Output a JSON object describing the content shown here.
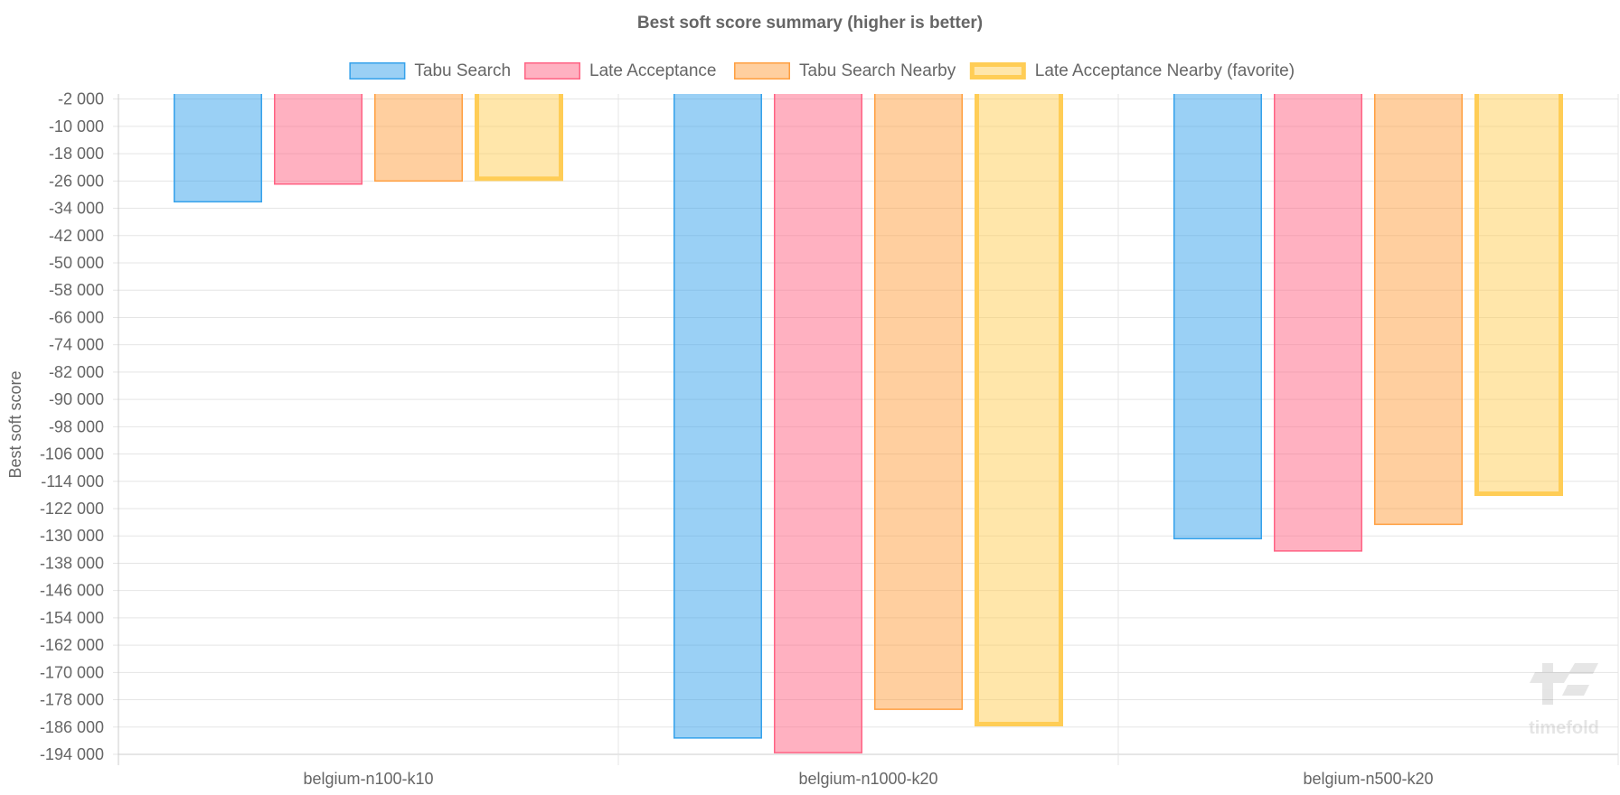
{
  "chart_data": {
    "type": "bar",
    "title": "Best soft score summary (higher is better)",
    "xlabel": "",
    "ylabel": "Best soft score",
    "categories": [
      "belgium-n100-k10",
      "belgium-n1000-k20",
      "belgium-n500-k20"
    ],
    "ylim": [
      -194000,
      -500
    ],
    "yticks": [
      -2000,
      -10000,
      -18000,
      -26000,
      -34000,
      -42000,
      -50000,
      -58000,
      -66000,
      -74000,
      -82000,
      -90000,
      -98000,
      -106000,
      -114000,
      -122000,
      -130000,
      -138000,
      -146000,
      -154000,
      -162000,
      -170000,
      -178000,
      -186000,
      -194000
    ],
    "grid": true,
    "legend_position": "top",
    "series": [
      {
        "name": "Tabu Search",
        "values": [
          -32300,
          -189400,
          -131000
        ],
        "color": "#36a2eb",
        "fill": "rgba(54,162,235,0.5)",
        "favorite": false
      },
      {
        "name": "Late Acceptance",
        "values": [
          -27100,
          -193700,
          -134600
        ],
        "color": "#ff6384",
        "fill": "rgba(255,99,132,0.5)",
        "favorite": false
      },
      {
        "name": "Tabu Search Nearby",
        "values": [
          -26200,
          -181000,
          -126800
        ],
        "color": "#ff9f40",
        "fill": "rgba(255,159,64,0.5)",
        "favorite": false
      },
      {
        "name": "Late Acceptance Nearby (favorite)",
        "values": [
          -26000,
          -185800,
          -118300
        ],
        "color": "#ffcd56",
        "fill": "rgba(255,205,86,0.5)",
        "favorite": true
      }
    ]
  },
  "watermark": "timefold"
}
